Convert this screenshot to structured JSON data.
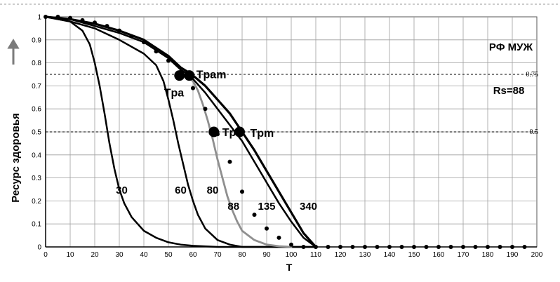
{
  "chart_data": {
    "type": "line",
    "title": "РФ МУЖ",
    "xlabel": "T",
    "ylabel": "Ресурс здоровья",
    "xlim": [
      0,
      200
    ],
    "ylim": [
      0,
      1
    ],
    "grid": true,
    "x_ticks": [
      "0",
      "10",
      "20",
      "30",
      "40",
      "50",
      "60",
      "70",
      "80",
      "90",
      "100",
      "110",
      "120",
      "130",
      "140",
      "150",
      "160",
      "170",
      "180",
      "190",
      "200"
    ],
    "y_ticks": [
      "0",
      "0.1",
      "0.2",
      "0.3",
      "0.4",
      "0.5",
      "0.6",
      "0.7",
      "0.8",
      "0.9",
      "1"
    ],
    "reference_lines": [
      {
        "y": 0.75,
        "label": "0.75"
      },
      {
        "y": 0.5,
        "label": "0.5"
      }
    ],
    "annotation_rs": "Rs=88",
    "series": [
      {
        "name": "30",
        "style": "solid-black",
        "x": [
          0,
          5,
          10,
          15,
          18,
          20,
          22,
          24,
          26,
          28,
          30,
          32,
          35,
          40,
          45,
          50,
          55,
          60,
          70,
          80,
          90,
          100,
          110
        ],
        "y": [
          1,
          0.99,
          0.98,
          0.94,
          0.88,
          0.8,
          0.7,
          0.58,
          0.45,
          0.34,
          0.25,
          0.19,
          0.13,
          0.07,
          0.04,
          0.02,
          0.01,
          0.005,
          0,
          0,
          0,
          0,
          0
        ]
      },
      {
        "name": "60",
        "style": "solid-black",
        "x": [
          0,
          10,
          20,
          30,
          40,
          45,
          48,
          50,
          52,
          54,
          56,
          58,
          60,
          62,
          65,
          70,
          75,
          80,
          90,
          100,
          110
        ],
        "y": [
          1,
          0.98,
          0.95,
          0.9,
          0.84,
          0.79,
          0.72,
          0.64,
          0.55,
          0.45,
          0.36,
          0.27,
          0.2,
          0.14,
          0.08,
          0.03,
          0.01,
          0,
          0,
          0,
          0
        ]
      },
      {
        "name": "80",
        "style": "solid-gray",
        "x": [
          55,
          58,
          60,
          62,
          64,
          66,
          68,
          70,
          72,
          74,
          76,
          78,
          80,
          85,
          90,
          95,
          100
        ],
        "y": [
          0.75,
          0.74,
          0.72,
          0.68,
          0.62,
          0.55,
          0.47,
          0.38,
          0.3,
          0.22,
          0.16,
          0.11,
          0.07,
          0.03,
          0.01,
          0.003,
          0
        ]
      },
      {
        "name": "88",
        "style": "dotted",
        "x": [
          0,
          5,
          10,
          15,
          20,
          25,
          30,
          35,
          40,
          45,
          50,
          55,
          60,
          65,
          70,
          75,
          80,
          85,
          90,
          95,
          100,
          105,
          110,
          115,
          120,
          125,
          130,
          135,
          140,
          145,
          150,
          155,
          160,
          165,
          170,
          175,
          180,
          185,
          190,
          195
        ],
        "y": [
          1,
          1,
          0.995,
          0.985,
          0.975,
          0.96,
          0.94,
          0.915,
          0.89,
          0.85,
          0.81,
          0.76,
          0.69,
          0.6,
          0.49,
          0.37,
          0.24,
          0.14,
          0.08,
          0.04,
          0.01,
          0,
          0,
          0,
          0,
          0,
          0,
          0,
          0,
          0,
          0,
          0,
          0,
          0,
          0,
          0,
          0,
          0,
          0,
          0
        ]
      },
      {
        "name": "135",
        "style": "solid-black",
        "x": [
          0,
          10,
          20,
          30,
          40,
          50,
          55,
          58,
          60,
          65,
          70,
          75,
          80,
          85,
          90,
          95,
          100,
          105,
          110
        ],
        "y": [
          1,
          0.99,
          0.96,
          0.93,
          0.89,
          0.82,
          0.77,
          0.75,
          0.73,
          0.67,
          0.6,
          0.53,
          0.46,
          0.37,
          0.28,
          0.19,
          0.11,
          0.04,
          0
        ]
      },
      {
        "name": "340",
        "style": "solid-black-thick",
        "x": [
          0,
          10,
          20,
          30,
          40,
          50,
          55,
          58,
          60,
          65,
          70,
          75,
          80,
          85,
          90,
          95,
          100,
          105,
          110
        ],
        "y": [
          1,
          0.99,
          0.97,
          0.94,
          0.9,
          0.83,
          0.78,
          0.76,
          0.745,
          0.7,
          0.64,
          0.58,
          0.5,
          0.42,
          0.33,
          0.24,
          0.15,
          0.06,
          0
        ]
      }
    ],
    "markers": [
      {
        "x": 54.5,
        "y": 0.745,
        "label": "Tpa"
      },
      {
        "x": 58.5,
        "y": 0.745,
        "label": "Tpam"
      },
      {
        "x": 68.5,
        "y": 0.5,
        "label": "Tp"
      },
      {
        "x": 79,
        "y": 0.5,
        "label": "Tpm"
      }
    ],
    "curve_labels": [
      {
        "text": "30",
        "x": 31,
        "y": 0.25
      },
      {
        "text": "60",
        "x": 55,
        "y": 0.25
      },
      {
        "text": "80",
        "x": 68,
        "y": 0.25
      },
      {
        "text": "88",
        "x": 76.5,
        "y": 0.18
      },
      {
        "text": "135",
        "x": 90,
        "y": 0.18
      },
      {
        "text": "340",
        "x": 107,
        "y": 0.18
      }
    ]
  }
}
